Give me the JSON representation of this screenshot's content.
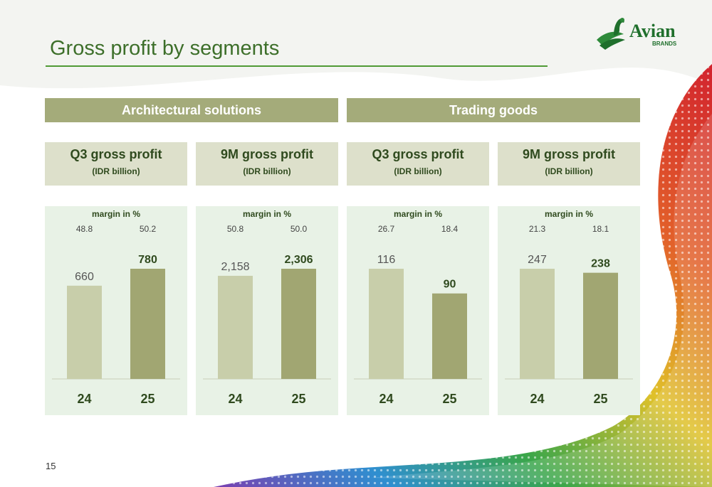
{
  "slide": {
    "title": "Gross profit by segments",
    "page_number": "15"
  },
  "logo": {
    "name": "Avian",
    "sub": "BRANDS"
  },
  "segments": [
    {
      "label": "Architectural solutions"
    },
    {
      "label": "Trading goods"
    }
  ],
  "charts_meta": {
    "subtitle": "(IDR billion)",
    "margin_label": "margin in %"
  },
  "colors": {
    "bar_prev": "#c8ceaa",
    "bar_curr": "#a1a672",
    "segment_band": "#a4ab7a",
    "header_box": "#dde0cb",
    "panel_bg": "#e8f2e6",
    "accent": "#3d6f2a"
  },
  "chart_data": [
    {
      "type": "bar",
      "title": "Q3 gross profit",
      "segment": "Architectural solutions",
      "categories": [
        "24",
        "25"
      ],
      "values": [
        660,
        780
      ],
      "value_labels": [
        "660",
        "780"
      ],
      "margins": [
        "48.8",
        "50.2"
      ]
    },
    {
      "type": "bar",
      "title": "9M gross profit",
      "segment": "Architectural solutions",
      "categories": [
        "24",
        "25"
      ],
      "values": [
        2158,
        2306
      ],
      "value_labels": [
        "2,158",
        "2,306"
      ],
      "margins": [
        "50.8",
        "50.0"
      ]
    },
    {
      "type": "bar",
      "title": "Q3 gross profit",
      "segment": "Trading goods",
      "categories": [
        "24",
        "25"
      ],
      "values": [
        116,
        90
      ],
      "value_labels": [
        "116",
        "90"
      ],
      "margins": [
        "26.7",
        "18.4"
      ]
    },
    {
      "type": "bar",
      "title": "9M gross profit",
      "segment": "Trading goods",
      "categories": [
        "24",
        "25"
      ],
      "values": [
        247,
        238
      ],
      "value_labels": [
        "247",
        "238"
      ],
      "margins": [
        "21.3",
        "18.1"
      ]
    }
  ]
}
